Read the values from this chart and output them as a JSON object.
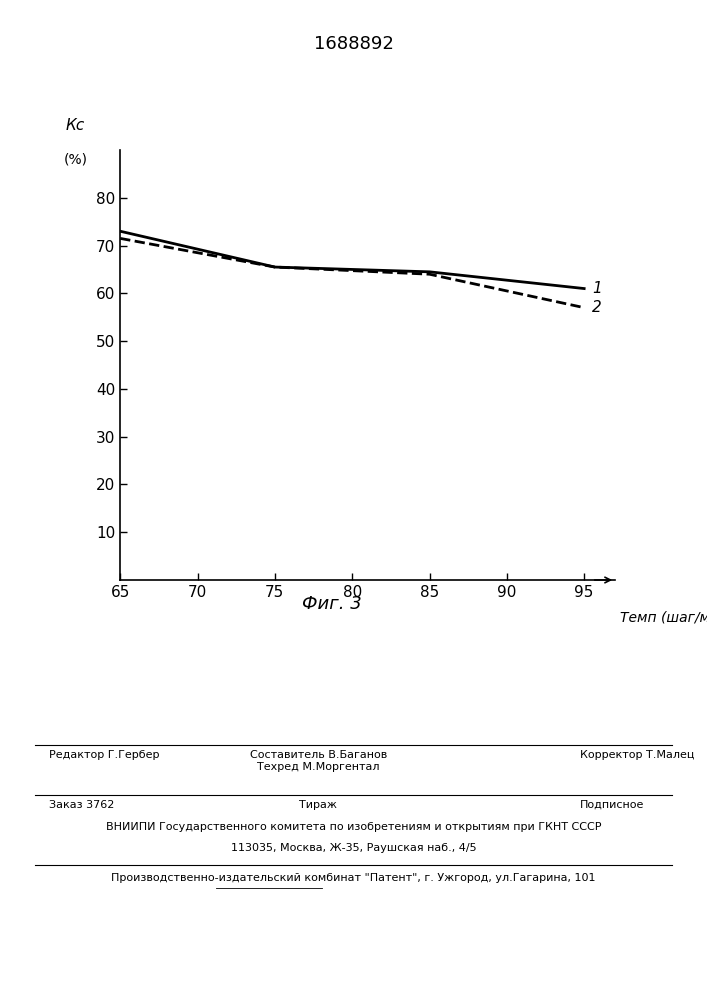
{
  "title": "1688892",
  "xlabel": "Темп (шаг/мин)",
  "ylabel": "Кс\n(%)",
  "fig_caption": "Фиг. 3",
  "x_ticks": [
    65,
    70,
    75,
    80,
    85,
    90,
    95
  ],
  "xlim": [
    65,
    97
  ],
  "ylim": [
    0,
    90
  ],
  "y_ticks": [
    10,
    20,
    30,
    40,
    50,
    60,
    70,
    80
  ],
  "line1": {
    "x": [
      65,
      75,
      85,
      95
    ],
    "y": [
      73,
      65.5,
      64.5,
      61
    ],
    "style": "-",
    "color": "#000000",
    "linewidth": 2.0,
    "label": "1"
  },
  "line2": {
    "x": [
      65,
      75,
      85,
      95
    ],
    "y": [
      71.5,
      65.5,
      64,
      57
    ],
    "style": "--",
    "color": "#000000",
    "linewidth": 2.0,
    "label": "2"
  },
  "background_color": "#ffffff",
  "footer_line1_left": "Редактор Г.Гербер",
  "footer_line1_center": "Составитель В.Баганов\nТехред М.Моргентал",
  "footer_line1_right": "Корректор Т.Малец",
  "footer_line2_left": "Заказ 3762",
  "footer_line2_center": "Тираж",
  "footer_line2_right": "Подписное",
  "footer_line3": "ВНИИПИ Государственного комитета по изобретениям и открытиям при ГКНТ СССР",
  "footer_line4": "113035, Москва, Ж-35, Раушская наб., 4/5",
  "footer_line5": "Производственно-издательский комбинат \"Патент\", г. Ужгород, ул.Гагарина, 101"
}
